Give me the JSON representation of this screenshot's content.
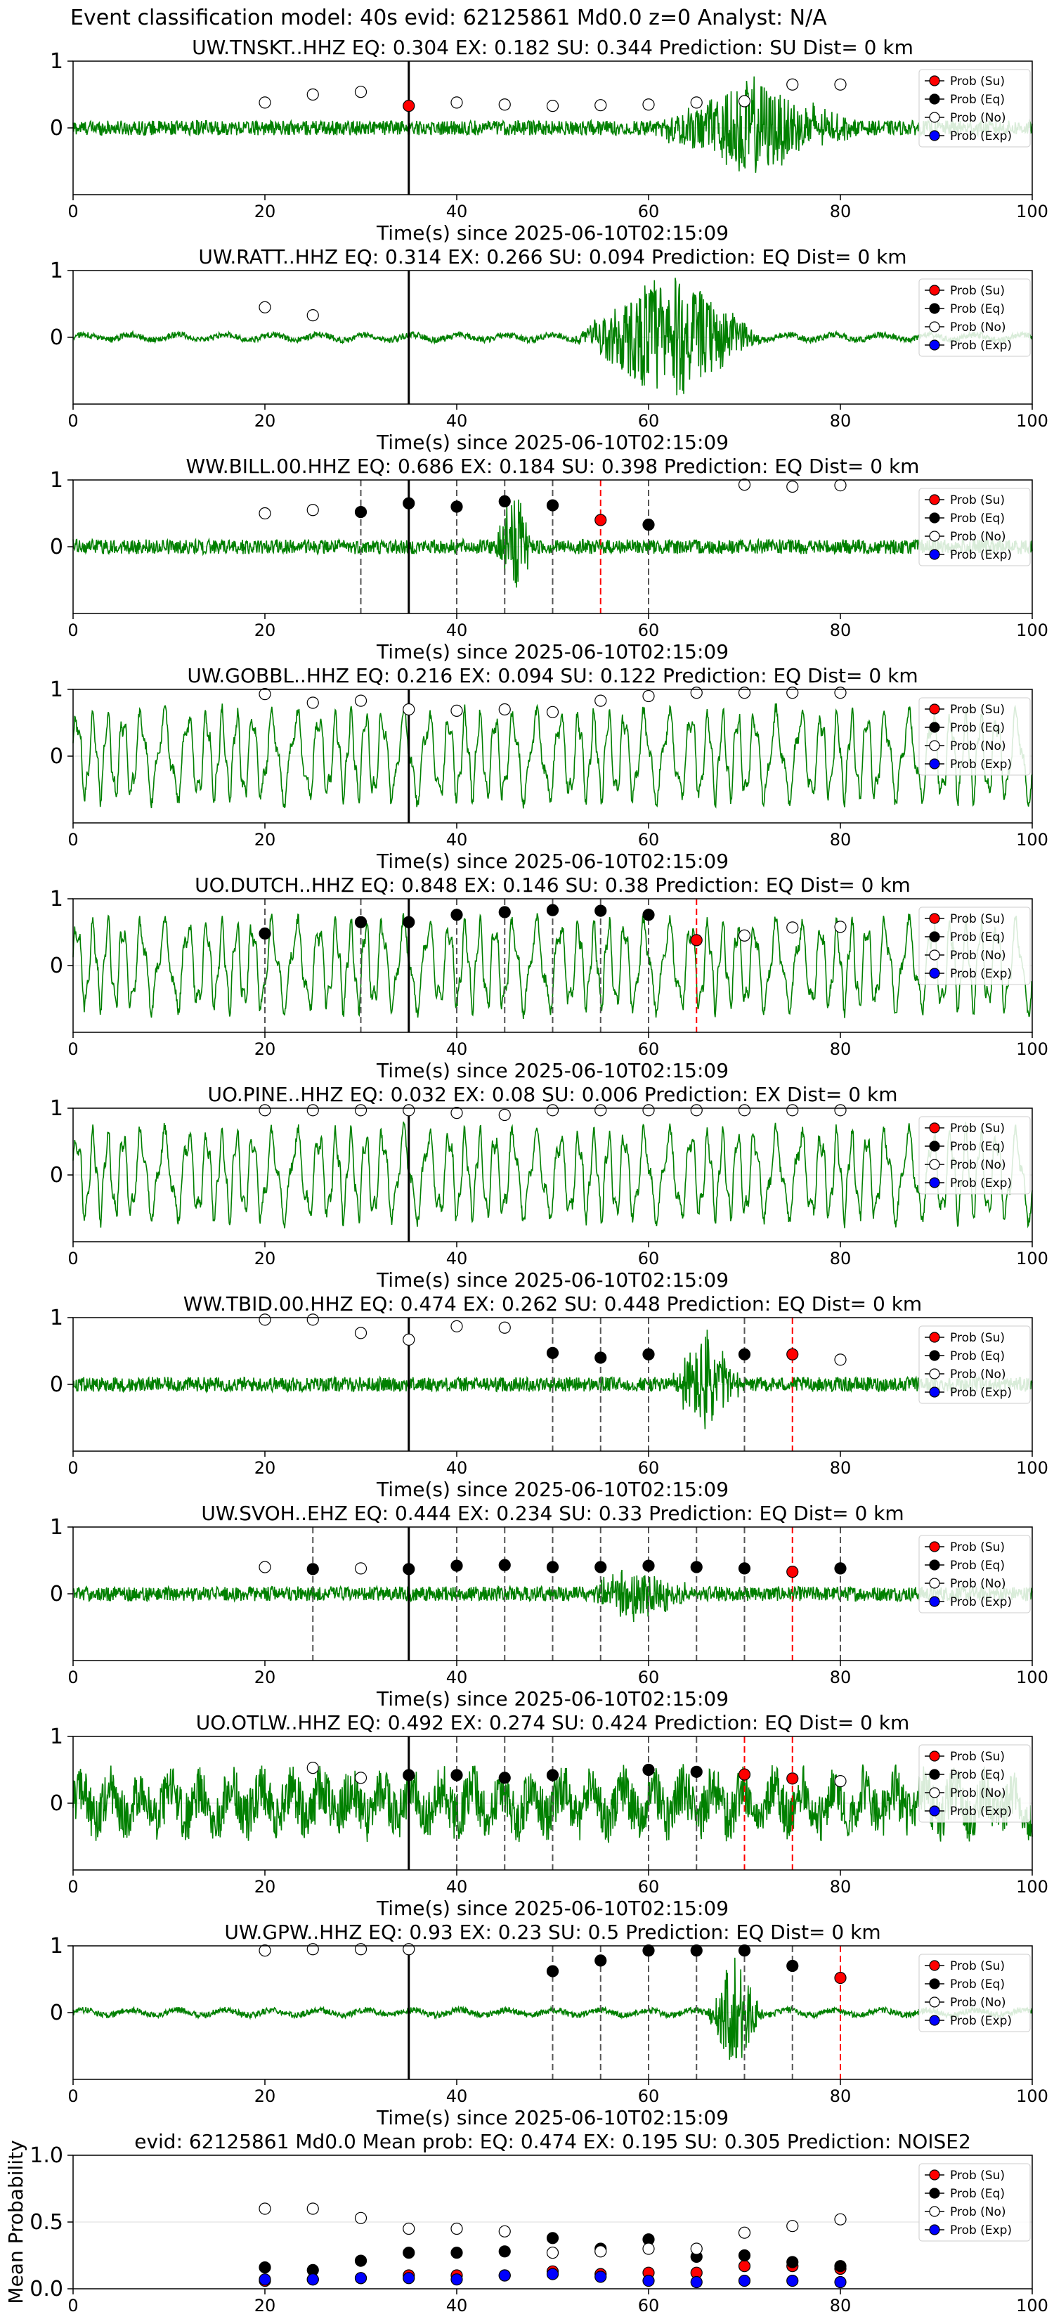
{
  "suptitle": "Event classification model: 40s evid: 62125861 Md0.0 z=0 Analyst: N/A",
  "xlabel": "Time(s) since 2025-06-10T02:15:09",
  "ylabel_mean": "Mean Probability",
  "legend": [
    "Prob (Su)",
    "Prob (Eq)",
    "Prob (No)",
    "Prob (Exp)"
  ],
  "colors": {
    "su": "#ff0000",
    "eq": "#000000",
    "no": "#ffffff",
    "exp": "#0000ff",
    "trace": "#008000",
    "pick_eq": "#555555",
    "pick_su": "#ff0000",
    "origin": "#000000"
  },
  "chart_data": [
    {
      "type": "line",
      "station": "UW.TNSKT..HHZ",
      "title": "UW.TNSKT..HHZ   EQ: 0.304   EX: 0.182   SU: 0.344   Prediction: SU    Dist= 0 km",
      "xlim": [
        0,
        100
      ],
      "ylim": [
        -1,
        1
      ],
      "yticks": [
        0,
        1
      ],
      "xticks": [
        0,
        20,
        40,
        60,
        80,
        100
      ],
      "origin_time": 35,
      "style": "broadband",
      "bursts": [
        [
          60,
          82,
          0.7
        ]
      ],
      "points": [
        {
          "x": 20,
          "y": 0.38,
          "cls": "no"
        },
        {
          "x": 25,
          "y": 0.5,
          "cls": "no"
        },
        {
          "x": 30,
          "y": 0.54,
          "cls": "no"
        },
        {
          "x": 35,
          "y": 0.33,
          "cls": "su"
        },
        {
          "x": 40,
          "y": 0.38,
          "cls": "no"
        },
        {
          "x": 45,
          "y": 0.35,
          "cls": "no"
        },
        {
          "x": 50,
          "y": 0.33,
          "cls": "no"
        },
        {
          "x": 55,
          "y": 0.34,
          "cls": "no"
        },
        {
          "x": 60,
          "y": 0.35,
          "cls": "no"
        },
        {
          "x": 65,
          "y": 0.38,
          "cls": "no"
        },
        {
          "x": 70,
          "y": 0.4,
          "cls": "no"
        },
        {
          "x": 75,
          "y": 0.65,
          "cls": "no"
        },
        {
          "x": 80,
          "y": 0.65,
          "cls": "no"
        }
      ],
      "picks_eq": [],
      "picks_su": []
    },
    {
      "type": "line",
      "station": "UW.RATT..HHZ",
      "title": "UW.RATT..HHZ   EQ: 0.314   EX: 0.266   SU: 0.094   Prediction: EQ    Dist= 0 km",
      "xlim": [
        0,
        100
      ],
      "ylim": [
        -1,
        1
      ],
      "yticks": [
        0,
        1
      ],
      "xticks": [
        0,
        20,
        40,
        60,
        80,
        100
      ],
      "origin_time": 35,
      "style": "quiet",
      "bursts": [
        [
          52,
          72,
          1.0
        ]
      ],
      "points": [
        {
          "x": 20,
          "y": 0.45,
          "cls": "no"
        },
        {
          "x": 25,
          "y": 0.33,
          "cls": "no"
        }
      ],
      "picks_eq": [],
      "picks_su": []
    },
    {
      "type": "line",
      "station": "WW.BILL.00.HHZ",
      "title": "WW.BILL.00.HHZ   EQ: 0.686   EX: 0.184   SU: 0.398   Prediction: EQ    Dist= 0 km",
      "xlim": [
        0,
        100
      ],
      "ylim": [
        -1,
        1
      ],
      "yticks": [
        0,
        1
      ],
      "xticks": [
        0,
        20,
        40,
        60,
        80,
        100
      ],
      "origin_time": 35,
      "style": "broadband",
      "bursts": [
        [
          44,
          48,
          0.9
        ]
      ],
      "points": [
        {
          "x": 20,
          "y": 0.5,
          "cls": "no"
        },
        {
          "x": 25,
          "y": 0.55,
          "cls": "no"
        },
        {
          "x": 30,
          "y": 0.52,
          "cls": "eq"
        },
        {
          "x": 35,
          "y": 0.65,
          "cls": "eq"
        },
        {
          "x": 40,
          "y": 0.6,
          "cls": "eq"
        },
        {
          "x": 45,
          "y": 0.68,
          "cls": "eq"
        },
        {
          "x": 50,
          "y": 0.62,
          "cls": "eq"
        },
        {
          "x": 55,
          "y": 0.4,
          "cls": "su"
        },
        {
          "x": 60,
          "y": 0.33,
          "cls": "eq"
        },
        {
          "x": 70,
          "y": 0.93,
          "cls": "no"
        },
        {
          "x": 75,
          "y": 0.9,
          "cls": "no"
        },
        {
          "x": 80,
          "y": 0.92,
          "cls": "no"
        }
      ],
      "picks_eq": [
        30,
        40,
        45,
        50,
        60
      ],
      "picks_su": [
        55
      ]
    },
    {
      "type": "line",
      "station": "UW.GOBBL..HHZ",
      "title": "UW.GOBBL..HHZ   EQ: 0.216   EX: 0.094   SU: 0.122   Prediction: EQ    Dist= 0 km",
      "xlim": [
        0,
        100
      ],
      "ylim": [
        -1,
        1
      ],
      "yticks": [
        0,
        1
      ],
      "xticks": [
        0,
        20,
        40,
        60,
        80,
        100
      ],
      "origin_time": 35,
      "style": "oscillating",
      "bursts": [],
      "points": [
        {
          "x": 20,
          "y": 0.93,
          "cls": "no"
        },
        {
          "x": 25,
          "y": 0.8,
          "cls": "no"
        },
        {
          "x": 30,
          "y": 0.83,
          "cls": "no"
        },
        {
          "x": 35,
          "y": 0.7,
          "cls": "no"
        },
        {
          "x": 40,
          "y": 0.68,
          "cls": "no"
        },
        {
          "x": 45,
          "y": 0.7,
          "cls": "no"
        },
        {
          "x": 50,
          "y": 0.66,
          "cls": "no"
        },
        {
          "x": 55,
          "y": 0.83,
          "cls": "no"
        },
        {
          "x": 60,
          "y": 0.9,
          "cls": "no"
        },
        {
          "x": 65,
          "y": 0.95,
          "cls": "no"
        },
        {
          "x": 70,
          "y": 0.95,
          "cls": "no"
        },
        {
          "x": 75,
          "y": 0.95,
          "cls": "no"
        },
        {
          "x": 80,
          "y": 0.95,
          "cls": "no"
        }
      ],
      "picks_eq": [],
      "picks_su": []
    },
    {
      "type": "line",
      "station": "UO.DUTCH..HHZ",
      "title": "UO.DUTCH..HHZ   EQ: 0.848   EX: 0.146   SU: 0.38    Prediction: EQ    Dist= 0 km",
      "xlim": [
        0,
        100
      ],
      "ylim": [
        -1,
        1
      ],
      "yticks": [
        0,
        1
      ],
      "xticks": [
        0,
        20,
        40,
        60,
        80,
        100
      ],
      "origin_time": 35,
      "style": "oscillating",
      "bursts": [],
      "points": [
        {
          "x": 20,
          "y": 0.48,
          "cls": "eq"
        },
        {
          "x": 30,
          "y": 0.65,
          "cls": "eq"
        },
        {
          "x": 35,
          "y": 0.65,
          "cls": "eq"
        },
        {
          "x": 40,
          "y": 0.76,
          "cls": "eq"
        },
        {
          "x": 45,
          "y": 0.8,
          "cls": "eq"
        },
        {
          "x": 50,
          "y": 0.83,
          "cls": "eq"
        },
        {
          "x": 55,
          "y": 0.82,
          "cls": "eq"
        },
        {
          "x": 60,
          "y": 0.76,
          "cls": "eq"
        },
        {
          "x": 65,
          "y": 0.38,
          "cls": "su"
        },
        {
          "x": 70,
          "y": 0.45,
          "cls": "no"
        },
        {
          "x": 75,
          "y": 0.57,
          "cls": "no"
        },
        {
          "x": 80,
          "y": 0.58,
          "cls": "no"
        }
      ],
      "picks_eq": [
        20,
        30,
        40,
        45,
        50,
        55,
        60
      ],
      "picks_su": [
        65
      ]
    },
    {
      "type": "line",
      "station": "UO.PINE..HHZ",
      "title": "UO.PINE..HHZ   EQ: 0.032   EX: 0.08   SU: 0.006   Prediction: EX    Dist= 0 km",
      "xlim": [
        0,
        100
      ],
      "ylim": [
        -1,
        1
      ],
      "yticks": [
        0,
        1
      ],
      "xticks": [
        0,
        20,
        40,
        60,
        80,
        100
      ],
      "origin_time": 35,
      "style": "oscillating",
      "bursts": [],
      "points": [
        {
          "x": 20,
          "y": 0.97,
          "cls": "no"
        },
        {
          "x": 25,
          "y": 0.97,
          "cls": "no"
        },
        {
          "x": 30,
          "y": 0.97,
          "cls": "no"
        },
        {
          "x": 35,
          "y": 0.97,
          "cls": "no"
        },
        {
          "x": 40,
          "y": 0.93,
          "cls": "no"
        },
        {
          "x": 45,
          "y": 0.9,
          "cls": "no"
        },
        {
          "x": 50,
          "y": 0.97,
          "cls": "no"
        },
        {
          "x": 55,
          "y": 0.97,
          "cls": "no"
        },
        {
          "x": 60,
          "y": 0.97,
          "cls": "no"
        },
        {
          "x": 65,
          "y": 0.97,
          "cls": "no"
        },
        {
          "x": 70,
          "y": 0.97,
          "cls": "no"
        },
        {
          "x": 75,
          "y": 0.97,
          "cls": "no"
        },
        {
          "x": 80,
          "y": 0.97,
          "cls": "no"
        }
      ],
      "picks_eq": [],
      "picks_su": []
    },
    {
      "type": "line",
      "station": "WW.TBID.00.HHZ",
      "title": "WW.TBID.00.HHZ   EQ: 0.474   EX: 0.262   SU: 0.448   Prediction: EQ    Dist= 0 km",
      "xlim": [
        0,
        100
      ],
      "ylim": [
        -1,
        1
      ],
      "yticks": [
        0,
        1
      ],
      "xticks": [
        0,
        20,
        40,
        60,
        80,
        100
      ],
      "origin_time": 35,
      "style": "broadband",
      "bursts": [
        [
          62,
          70,
          0.8
        ]
      ],
      "points": [
        {
          "x": 20,
          "y": 0.97,
          "cls": "no"
        },
        {
          "x": 25,
          "y": 0.97,
          "cls": "no"
        },
        {
          "x": 30,
          "y": 0.77,
          "cls": "no"
        },
        {
          "x": 35,
          "y": 0.67,
          "cls": "no"
        },
        {
          "x": 40,
          "y": 0.87,
          "cls": "no"
        },
        {
          "x": 45,
          "y": 0.85,
          "cls": "no"
        },
        {
          "x": 50,
          "y": 0.47,
          "cls": "eq"
        },
        {
          "x": 55,
          "y": 0.4,
          "cls": "eq"
        },
        {
          "x": 60,
          "y": 0.45,
          "cls": "eq"
        },
        {
          "x": 70,
          "y": 0.45,
          "cls": "eq"
        },
        {
          "x": 75,
          "y": 0.45,
          "cls": "su"
        },
        {
          "x": 80,
          "y": 0.37,
          "cls": "no"
        }
      ],
      "picks_eq": [
        50,
        55,
        60,
        70
      ],
      "picks_su": [
        75
      ]
    },
    {
      "type": "line",
      "station": "UW.SVOH..EHZ",
      "title": "UW.SVOH..EHZ   EQ: 0.444   EX: 0.234   SU: 0.33    Prediction: EQ    Dist= 0 km",
      "xlim": [
        0,
        100
      ],
      "ylim": [
        -1,
        1
      ],
      "yticks": [
        0,
        1
      ],
      "xticks": [
        0,
        20,
        40,
        60,
        80,
        100
      ],
      "origin_time": 35,
      "style": "broadband",
      "bursts": [
        [
          53,
          65,
          0.4
        ]
      ],
      "points": [
        {
          "x": 20,
          "y": 0.4,
          "cls": "no"
        },
        {
          "x": 25,
          "y": 0.37,
          "cls": "eq"
        },
        {
          "x": 30,
          "y": 0.38,
          "cls": "no"
        },
        {
          "x": 35,
          "y": 0.37,
          "cls": "eq"
        },
        {
          "x": 40,
          "y": 0.42,
          "cls": "eq"
        },
        {
          "x": 45,
          "y": 0.43,
          "cls": "eq"
        },
        {
          "x": 50,
          "y": 0.4,
          "cls": "eq"
        },
        {
          "x": 55,
          "y": 0.4,
          "cls": "eq"
        },
        {
          "x": 60,
          "y": 0.42,
          "cls": "eq"
        },
        {
          "x": 65,
          "y": 0.4,
          "cls": "eq"
        },
        {
          "x": 70,
          "y": 0.38,
          "cls": "eq"
        },
        {
          "x": 75,
          "y": 0.33,
          "cls": "su"
        },
        {
          "x": 80,
          "y": 0.38,
          "cls": "eq"
        }
      ],
      "picks_eq": [
        25,
        40,
        45,
        50,
        55,
        60,
        65,
        70,
        80
      ],
      "picks_su": [
        75
      ]
    },
    {
      "type": "line",
      "station": "UO.OTLW..HHZ",
      "title": "UO.OTLW..HHZ   EQ: 0.492   EX: 0.274   SU: 0.424   Prediction: EQ    Dist= 0 km",
      "xlim": [
        0,
        100
      ],
      "ylim": [
        -1,
        1
      ],
      "yticks": [
        0,
        1
      ],
      "xticks": [
        0,
        20,
        40,
        60,
        80,
        100
      ],
      "origin_time": 35,
      "style": "noisy",
      "bursts": [],
      "points": [
        {
          "x": 25,
          "y": 0.53,
          "cls": "no"
        },
        {
          "x": 30,
          "y": 0.38,
          "cls": "no"
        },
        {
          "x": 35,
          "y": 0.42,
          "cls": "eq"
        },
        {
          "x": 40,
          "y": 0.42,
          "cls": "eq"
        },
        {
          "x": 45,
          "y": 0.38,
          "cls": "eq"
        },
        {
          "x": 50,
          "y": 0.42,
          "cls": "eq"
        },
        {
          "x": 60,
          "y": 0.5,
          "cls": "eq"
        },
        {
          "x": 65,
          "y": 0.47,
          "cls": "eq"
        },
        {
          "x": 70,
          "y": 0.43,
          "cls": "su"
        },
        {
          "x": 75,
          "y": 0.37,
          "cls": "su"
        },
        {
          "x": 80,
          "y": 0.33,
          "cls": "no"
        }
      ],
      "picks_eq": [
        40,
        45,
        50,
        60,
        65
      ],
      "picks_su": [
        70,
        75
      ]
    },
    {
      "type": "line",
      "station": "UW.GPW..HHZ",
      "title": "UW.GPW..HHZ   EQ: 0.93   EX: 0.23   SU: 0.5    Prediction: EQ    Dist= 0 km",
      "xlim": [
        0,
        100
      ],
      "ylim": [
        -1,
        1
      ],
      "yticks": [
        0,
        1
      ],
      "xticks": [
        0,
        20,
        40,
        60,
        80,
        100
      ],
      "origin_time": 35,
      "style": "quiet",
      "bursts": [
        [
          66,
          72,
          0.9
        ]
      ],
      "points": [
        {
          "x": 20,
          "y": 0.93,
          "cls": "no"
        },
        {
          "x": 25,
          "y": 0.95,
          "cls": "no"
        },
        {
          "x": 30,
          "y": 0.95,
          "cls": "no"
        },
        {
          "x": 35,
          "y": 0.95,
          "cls": "no"
        },
        {
          "x": 50,
          "y": 0.62,
          "cls": "eq"
        },
        {
          "x": 55,
          "y": 0.78,
          "cls": "eq"
        },
        {
          "x": 60,
          "y": 0.93,
          "cls": "eq"
        },
        {
          "x": 65,
          "y": 0.93,
          "cls": "eq"
        },
        {
          "x": 70,
          "y": 0.93,
          "cls": "eq"
        },
        {
          "x": 75,
          "y": 0.7,
          "cls": "eq"
        },
        {
          "x": 80,
          "y": 0.52,
          "cls": "su"
        }
      ],
      "picks_eq": [
        50,
        55,
        60,
        65,
        70,
        75
      ],
      "picks_su": [
        80
      ]
    },
    {
      "type": "scatter",
      "title": "evid: 62125861  Md0.0   Mean prob:   EQ: 0.474   EX: 0.195   SU: 0.305   Prediction: NOISE2",
      "xlim": [
        0,
        100
      ],
      "ylim": [
        0,
        1
      ],
      "yticks": [
        0,
        0.5,
        1
      ],
      "ytick_labels": [
        "0.0",
        "0.5",
        "1.0"
      ],
      "xticks": [
        0,
        20,
        40,
        60,
        80,
        100
      ],
      "ylabel": "Mean Probability",
      "x": [
        20,
        25,
        30,
        35,
        40,
        45,
        50,
        55,
        60,
        65,
        70,
        75,
        80
      ],
      "series": [
        {
          "name": "Prob (Su)",
          "cls": "su",
          "values": [
            0.06,
            0.07,
            0.08,
            0.1,
            0.1,
            0.1,
            0.13,
            0.11,
            0.12,
            0.12,
            0.17,
            0.17,
            0.15
          ]
        },
        {
          "name": "Prob (Eq)",
          "cls": "eq",
          "values": [
            0.16,
            0.14,
            0.21,
            0.27,
            0.27,
            0.28,
            0.38,
            0.3,
            0.37,
            0.24,
            0.25,
            0.2,
            0.17
          ]
        },
        {
          "name": "Prob (No)",
          "cls": "no",
          "values": [
            0.6,
            0.6,
            0.53,
            0.45,
            0.45,
            0.43,
            0.27,
            0.28,
            0.3,
            0.3,
            0.42,
            0.47,
            0.52
          ]
        },
        {
          "name": "Prob (Exp)",
          "cls": "exp",
          "values": [
            0.07,
            0.07,
            0.08,
            0.08,
            0.07,
            0.1,
            0.11,
            0.09,
            0.06,
            0.05,
            0.06,
            0.06,
            0.05
          ]
        }
      ]
    }
  ]
}
